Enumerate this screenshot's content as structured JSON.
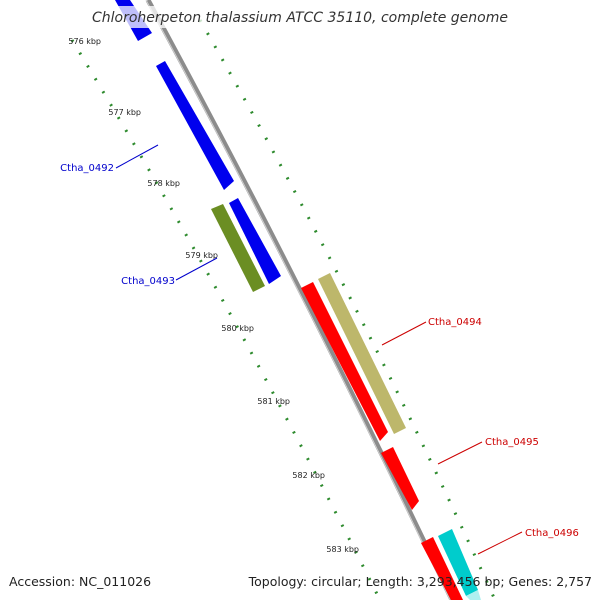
{
  "title": "Chloroherpeton thalassium ATCC 35110, complete genome",
  "accession": "Accession: NC_011026",
  "stats": "Topology: circular; Length: 3,293,456 bp; Genes: 2,757",
  "colors": {
    "backbone": "#8c8c8c",
    "ticks": "#2e8b2e",
    "blue_gene": "#0000ee",
    "olive_gene": "#6b8e23",
    "red_gene": "#ff0000",
    "khaki_gene": "#bdb76b",
    "cyan_gene": "#00cccc",
    "blue_label": "#0000cc",
    "red_label": "#cc0000"
  },
  "kbp_labels": [
    "576 kbp",
    "577 kbp",
    "578 kbp",
    "579 kbp",
    "580 kbp",
    "581 kbp",
    "582 kbp",
    "583 kbp"
  ],
  "gene_labels": [
    "Ctha_0492",
    "Ctha_0493",
    "Ctha_0494",
    "Ctha_0495",
    "Ctha_0496"
  ]
}
